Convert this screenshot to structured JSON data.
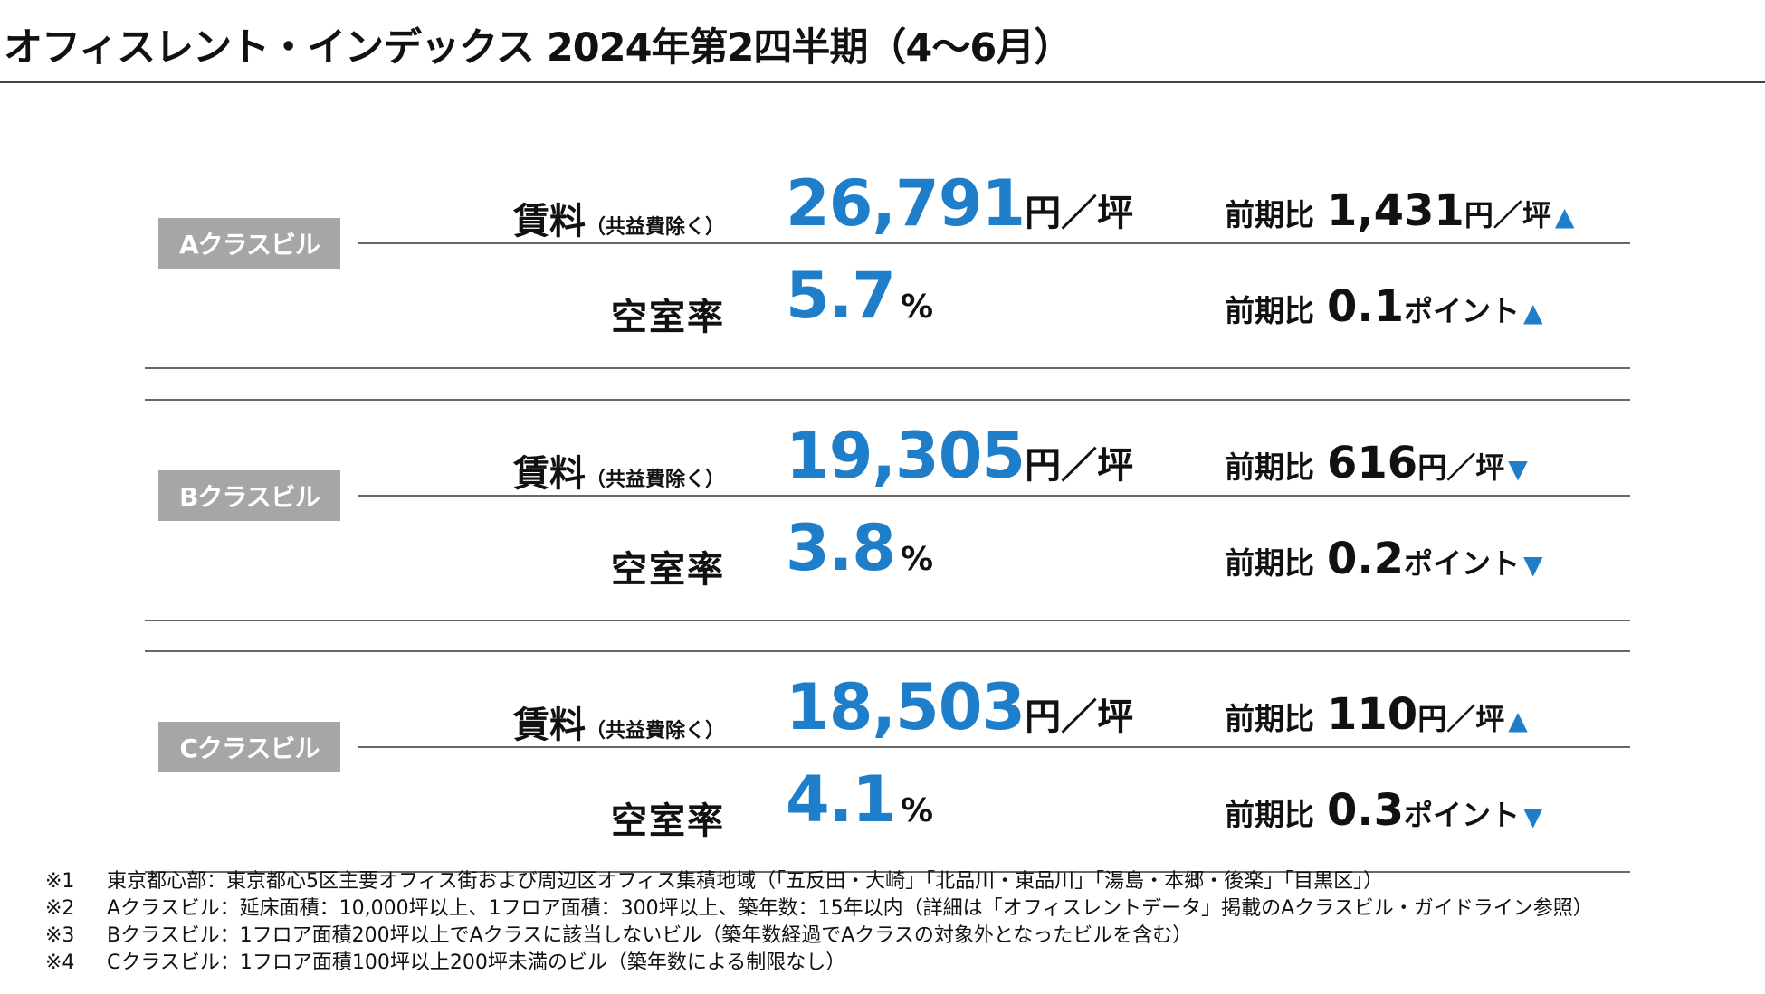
{
  "title": "オフィスレント・インデックス 2024年第2四半期（4〜6月）",
  "labels": {
    "rent": "賃料",
    "rent_sub": "（共益費除く）",
    "vacancy": "空室率",
    "compare": "前期比"
  },
  "units": {
    "rent": "円／坪",
    "vacancy": "%",
    "point": "ポイント"
  },
  "colors": {
    "accent": "#1f7ec9",
    "label_bg": "#a6a6a6"
  },
  "blocks": [
    {
      "class_label": "Aクラスビル",
      "rent_value": "26,791",
      "rent_change": "1,431",
      "rent_arrow": "▲",
      "vacancy_value": "5.7",
      "vacancy_change": "0.1",
      "vacancy_arrow": "▲"
    },
    {
      "class_label": "Bクラスビル",
      "rent_value": "19,305",
      "rent_change": "616",
      "rent_arrow": "▼",
      "vacancy_value": "3.8",
      "vacancy_change": "0.2",
      "vacancy_arrow": "▼"
    },
    {
      "class_label": "Cクラスビル",
      "rent_value": "18,503",
      "rent_change": "110",
      "rent_arrow": "▲",
      "vacancy_value": "4.1",
      "vacancy_change": "0.3",
      "vacancy_arrow": "▼"
    }
  ],
  "notes": [
    {
      "mark": "※1",
      "text": "東京都心部：東京都心5区主要オフィス街および周辺区オフィス集積地域（「五反田・大崎」「北品川・東品川」「湯島・本郷・後楽」「目黒区」）"
    },
    {
      "mark": "※2",
      "text": "Aクラスビル：延床面積：10,000坪以上、1フロア面積：300坪以上、築年数：15年以内（詳細は「オフィスレントデータ」掲載のAクラスビル・ガイドライン参照）"
    },
    {
      "mark": "※3",
      "text": "Bクラスビル：1フロア面積200坪以上でAクラスに該当しないビル（築年数経過でAクラスの対象外となったビルを含む）"
    },
    {
      "mark": "※4",
      "text": "Cクラスビル：1フロア面積100坪以上200坪未満のビル（築年数による制限なし）"
    }
  ]
}
